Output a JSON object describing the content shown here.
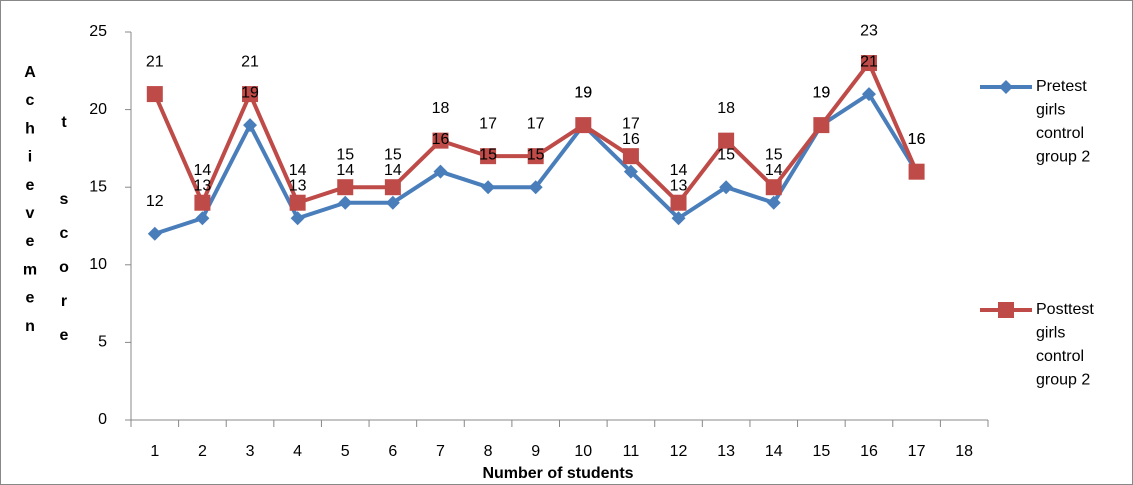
{
  "chart_data": {
    "type": "line",
    "x_label": "Number of students",
    "y_label": "Achievement score",
    "categories": [
      "1",
      "2",
      "3",
      "4",
      "5",
      "6",
      "7",
      "8",
      "9",
      "10",
      "11",
      "12",
      "13",
      "14",
      "15",
      "16",
      "17",
      "18"
    ],
    "series": [
      {
        "name": "Pretest girls control group 2",
        "color": "#4a7ebb",
        "marker": "diamond",
        "values": [
          12,
          13,
          19,
          13,
          14,
          14,
          16,
          15,
          15,
          19,
          16,
          13,
          15,
          14,
          19,
          21,
          16,
          null
        ]
      },
      {
        "name": "Posttest girls control group 2",
        "color": "#be4b48",
        "marker": "square",
        "values": [
          21,
          14,
          21,
          14,
          15,
          15,
          18,
          17,
          17,
          19,
          17,
          14,
          18,
          15,
          19,
          23,
          16,
          null
        ]
      }
    ],
    "ylim": [
      0,
      25
    ],
    "yticks": [
      0,
      5,
      10,
      15,
      20,
      25
    ],
    "grid": false,
    "legend": "right"
  }
}
